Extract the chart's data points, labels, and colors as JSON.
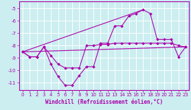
{
  "xlabel": "Windchill (Refroidissement éolien,°C)",
  "background_color": "#cceef0",
  "grid_color": "#ffffff",
  "line_color": "#aa00aa",
  "xlim": [
    -0.5,
    23.5
  ],
  "ylim": [
    -11.6,
    -4.4
  ],
  "yticks": [
    -11,
    -10,
    -9,
    -8,
    -7,
    -6,
    -5
  ],
  "xticks": [
    0,
    1,
    2,
    3,
    4,
    5,
    6,
    7,
    8,
    9,
    10,
    11,
    12,
    13,
    14,
    15,
    16,
    17,
    18,
    19,
    20,
    21,
    22,
    23
  ],
  "y_main": [
    -8.5,
    -8.9,
    -8.9,
    -8.1,
    -9.5,
    -10.5,
    -11.2,
    -11.2,
    -10.4,
    -9.7,
    -9.7,
    -7.8,
    -7.8,
    -6.4,
    -6.4,
    -5.6,
    -5.4,
    -5.1,
    -5.4,
    -7.5,
    -7.5,
    -7.5,
    -8.9,
    -8.1
  ],
  "y_smooth": [
    -8.5,
    -8.9,
    -8.9,
    -8.1,
    -8.8,
    -9.5,
    -9.8,
    -9.8,
    -9.8,
    -8.0,
    -8.0,
    -7.9,
    -7.9,
    -7.8,
    -7.8,
    -7.8,
    -7.8,
    -7.8,
    -7.8,
    -7.8,
    -7.8,
    -7.8,
    -8.0,
    -8.1
  ],
  "line3_x": [
    0,
    23
  ],
  "line3_y": [
    -8.5,
    -8.1
  ],
  "line4_x": [
    0,
    17
  ],
  "line4_y": [
    -8.5,
    -5.1
  ]
}
